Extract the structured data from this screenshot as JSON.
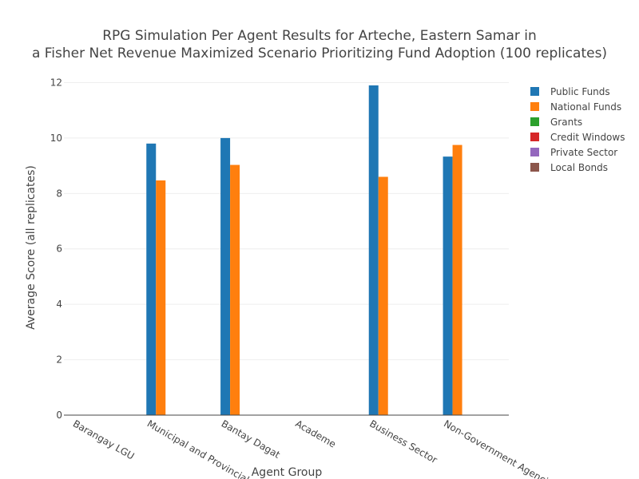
{
  "chart_data": {
    "type": "bar",
    "title_lines": [
      "RPG Simulation Per Agent Results for Arteche, Eastern Samar in",
      "a Fisher Net Revenue Maximized Scenario Prioritizing Fund Adoption (100 replicates)"
    ],
    "xlabel": "Agent Group",
    "ylabel": "Average Score (all replicates)",
    "ylim": [
      0,
      12.1
    ],
    "yticks": [
      0,
      2,
      4,
      6,
      8,
      10,
      12
    ],
    "categories": [
      "Barangay LGU",
      "Municipal and Provincial LGU",
      "Bantay Dagat",
      "Academe",
      "Business Sector",
      "Non-Government Agencies"
    ],
    "series": [
      {
        "name": "Public Funds",
        "color": "#1f77b4",
        "values": [
          0,
          9.8,
          10.0,
          0,
          11.9,
          9.33
        ]
      },
      {
        "name": "National Funds",
        "color": "#ff7f0e",
        "values": [
          0,
          8.47,
          9.03,
          0,
          8.6,
          9.75
        ]
      },
      {
        "name": "Grants",
        "color": "#2ca02c",
        "values": [
          0,
          0,
          0,
          0,
          0,
          0
        ]
      },
      {
        "name": "Credit Windows",
        "color": "#d62728",
        "values": [
          0,
          0,
          0,
          0,
          0,
          0
        ]
      },
      {
        "name": "Private Sector",
        "color": "#9467bd",
        "values": [
          0,
          0,
          0,
          0,
          0,
          0
        ]
      },
      {
        "name": "Local Bonds",
        "color": "#8c564b",
        "values": [
          0,
          0,
          0,
          0,
          0,
          0
        ]
      }
    ],
    "grid": true,
    "legend_position": "top-right"
  }
}
